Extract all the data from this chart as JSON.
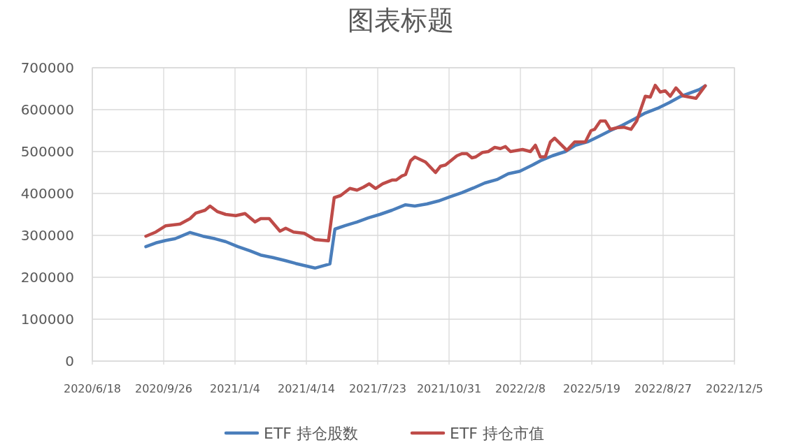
{
  "chart_data": {
    "type": "line",
    "title": "图表标题",
    "legend": "bottom",
    "grid": true,
    "line_style": "solid",
    "marker": "none",
    "xlim": [
      "2020-06-18",
      "2022-12-05"
    ],
    "xticks": [
      {
        "value": "2020-06-18",
        "label": "2020/6/18"
      },
      {
        "value": "2020-09-26",
        "label": "2020/9/26"
      },
      {
        "value": "2021-01-04",
        "label": "2021/1/4"
      },
      {
        "value": "2021-04-14",
        "label": "2021/4/14"
      },
      {
        "value": "2021-07-23",
        "label": "2021/7/23"
      },
      {
        "value": "2021-10-31",
        "label": "2021/10/31"
      },
      {
        "value": "2022-02-08",
        "label": "2022/2/8"
      },
      {
        "value": "2022-05-19",
        "label": "2022/5/19"
      },
      {
        "value": "2022-08-27",
        "label": "2022/8/27"
      },
      {
        "value": "2022-12-05",
        "label": "2022/12/5"
      }
    ],
    "ylim": [
      0,
      700000
    ],
    "yticks": [
      0,
      100000,
      200000,
      300000,
      400000,
      500000,
      600000,
      700000
    ],
    "series": [
      {
        "name": "ETF 持仓股数",
        "color": "#4a7ebb",
        "x": [
          "2020-09-01",
          "2020-09-15",
          "2020-09-29",
          "2020-10-12",
          "2020-11-02",
          "2020-11-20",
          "2020-12-07",
          "2020-12-22",
          "2021-01-08",
          "2021-01-25",
          "2021-02-09",
          "2021-02-26",
          "2021-03-15",
          "2021-03-30",
          "2021-04-26",
          "2021-05-17",
          "2021-05-24",
          "2021-06-07",
          "2021-06-24",
          "2021-07-10",
          "2021-07-26",
          "2021-08-12",
          "2021-08-31",
          "2021-09-13",
          "2021-09-30",
          "2021-10-16",
          "2021-11-01",
          "2021-11-18",
          "2021-12-04",
          "2021-12-20",
          "2022-01-06",
          "2022-01-22",
          "2022-02-07",
          "2022-02-24",
          "2022-03-08",
          "2022-03-25",
          "2022-04-12",
          "2022-04-26",
          "2022-05-13",
          "2022-05-30",
          "2022-06-14",
          "2022-07-01",
          "2022-07-18",
          "2022-08-02",
          "2022-08-19",
          "2022-09-05",
          "2022-09-21",
          "2022-10-07",
          "2022-10-17",
          "2022-10-25"
        ],
        "values": [
          273000,
          282000,
          288000,
          292000,
          307000,
          298000,
          292000,
          285000,
          273000,
          263000,
          253000,
          247000,
          240000,
          233000,
          222000,
          232000,
          315000,
          323000,
          332000,
          342000,
          350000,
          360000,
          373000,
          370000,
          375000,
          382000,
          392000,
          402000,
          413000,
          425000,
          433000,
          447000,
          453000,
          467000,
          478000,
          490000,
          500000,
          515000,
          523000,
          537000,
          550000,
          563000,
          578000,
          592000,
          603000,
          617000,
          632000,
          642000,
          648000,
          657000
        ]
      },
      {
        "name": "ETF 持仓市值",
        "color": "#be4b48",
        "x": [
          "2020-09-01",
          "2020-09-15",
          "2020-09-29",
          "2020-10-19",
          "2020-11-02",
          "2020-11-10",
          "2020-11-23",
          "2020-11-30",
          "2020-12-10",
          "2020-12-22",
          "2021-01-05",
          "2021-01-18",
          "2021-02-01",
          "2021-02-09",
          "2021-02-21",
          "2021-03-08",
          "2021-03-16",
          "2021-03-27",
          "2021-04-11",
          "2021-04-26",
          "2021-05-15",
          "2021-05-23",
          "2021-06-01",
          "2021-06-14",
          "2021-06-24",
          "2021-07-03",
          "2021-07-11",
          "2021-07-20",
          "2021-07-30",
          "2021-08-12",
          "2021-08-18",
          "2021-08-26",
          "2021-08-31",
          "2021-09-07",
          "2021-09-13",
          "2021-09-28",
          "2021-10-12",
          "2021-10-19",
          "2021-10-26",
          "2021-11-11",
          "2021-11-18",
          "2021-11-25",
          "2021-12-02",
          "2021-12-07",
          "2021-12-17",
          "2021-12-25",
          "2022-01-03",
          "2022-01-11",
          "2022-01-18",
          "2022-01-25",
          "2022-02-11",
          "2022-02-22",
          "2022-03-01",
          "2022-03-08",
          "2022-03-15",
          "2022-03-22",
          "2022-03-28",
          "2022-04-14",
          "2022-04-25",
          "2022-05-10",
          "2022-05-18",
          "2022-05-23",
          "2022-05-31",
          "2022-06-07",
          "2022-06-14",
          "2022-06-24",
          "2022-07-03",
          "2022-07-13",
          "2022-07-21",
          "2022-08-02",
          "2022-08-09",
          "2022-08-16",
          "2022-08-23",
          "2022-08-30",
          "2022-09-06",
          "2022-09-14",
          "2022-09-24",
          "2022-10-12",
          "2022-10-25"
        ],
        "values": [
          298000,
          308000,
          323000,
          327000,
          340000,
          353000,
          360000,
          370000,
          357000,
          350000,
          347000,
          352000,
          332000,
          340000,
          340000,
          310000,
          317000,
          308000,
          305000,
          290000,
          287000,
          390000,
          395000,
          412000,
          408000,
          415000,
          423000,
          412000,
          423000,
          432000,
          432000,
          442000,
          445000,
          478000,
          487000,
          475000,
          450000,
          465000,
          468000,
          490000,
          495000,
          495000,
          485000,
          487000,
          498000,
          500000,
          510000,
          507000,
          512000,
          500000,
          505000,
          500000,
          515000,
          487000,
          488000,
          523000,
          532000,
          503000,
          523000,
          523000,
          550000,
          553000,
          573000,
          573000,
          553000,
          557000,
          558000,
          553000,
          573000,
          632000,
          630000,
          658000,
          642000,
          645000,
          632000,
          652000,
          633000,
          627000,
          657000
        ]
      }
    ]
  }
}
